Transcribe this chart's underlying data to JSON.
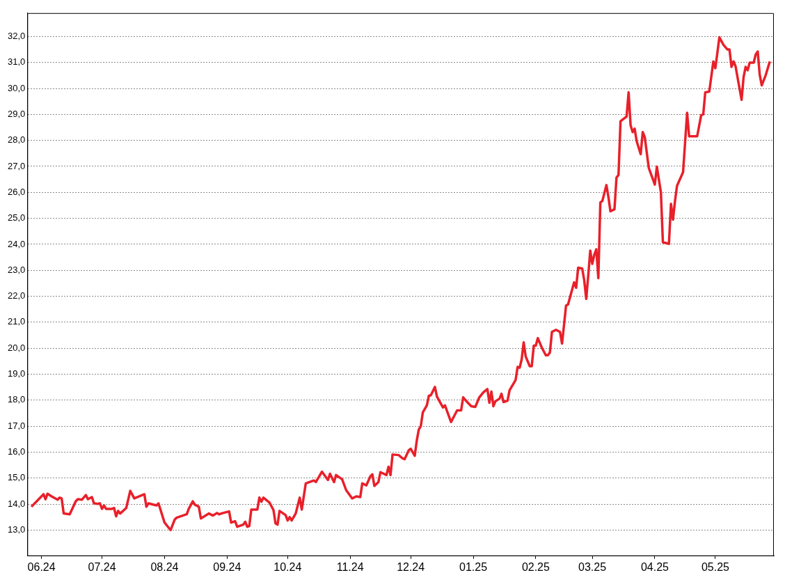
{
  "chart_data": {
    "type": "line",
    "x": [
      "2024-05-27",
      "2024-05-31",
      "2024-06-02",
      "2024-06-03",
      "2024-06-04",
      "2024-06-06",
      "2024-06-09",
      "2024-06-10",
      "2024-06-11",
      "2024-06-12",
      "2024-06-15",
      "2024-06-18",
      "2024-06-19",
      "2024-06-21",
      "2024-06-23",
      "2024-06-24",
      "2024-06-26",
      "2024-06-27",
      "2024-06-29",
      "2024-06-30",
      "2024-07-01",
      "2024-07-02",
      "2024-07-03",
      "2024-07-06",
      "2024-07-07",
      "2024-07-08",
      "2024-07-09",
      "2024-07-10",
      "2024-07-13",
      "2024-07-15",
      "2024-07-17",
      "2024-07-22",
      "2024-07-23",
      "2024-07-24",
      "2024-07-28",
      "2024-07-29",
      "2024-08-01",
      "2024-08-04",
      "2024-08-06",
      "2024-08-07",
      "2024-08-12",
      "2024-08-13",
      "2024-08-15",
      "2024-08-16",
      "2024-08-18",
      "2024-08-19",
      "2024-08-23",
      "2024-08-25",
      "2024-08-27",
      "2024-08-28",
      "2024-08-30",
      "2024-09-02",
      "2024-09-03",
      "2024-09-05",
      "2024-09-06",
      "2024-09-09",
      "2024-09-10",
      "2024-09-11",
      "2024-09-12",
      "2024-09-13",
      "2024-09-16",
      "2024-09-17",
      "2024-09-18",
      "2024-09-19",
      "2024-09-22",
      "2024-09-24",
      "2024-09-25",
      "2024-09-26",
      "2024-09-27",
      "2024-09-30",
      "2024-10-01",
      "2024-10-02",
      "2024-10-03",
      "2024-10-05",
      "2024-10-07",
      "2024-10-08",
      "2024-10-10",
      "2024-10-14",
      "2024-10-15",
      "2024-10-18",
      "2024-10-21",
      "2024-10-22",
      "2024-10-24",
      "2024-10-25",
      "2024-10-28",
      "2024-10-30",
      "2024-11-02",
      "2024-11-04",
      "2024-11-06",
      "2024-11-07",
      "2024-11-09",
      "2024-11-11",
      "2024-11-12",
      "2024-11-13",
      "2024-11-15",
      "2024-11-16",
      "2024-11-19",
      "2024-11-20",
      "2024-11-21",
      "2024-11-22",
      "2024-11-25",
      "2024-11-27",
      "2024-11-28",
      "2024-11-30",
      "2024-12-01",
      "2024-12-03",
      "2024-12-04",
      "2024-12-05",
      "2024-12-06",
      "2024-12-07",
      "2024-12-09",
      "2024-12-10",
      "2024-12-11",
      "2024-12-13",
      "2024-12-14",
      "2024-12-17",
      "2024-12-18",
      "2024-12-21",
      "2024-12-24",
      "2024-12-26",
      "2024-12-27",
      "2024-12-29",
      "2024-12-31",
      "2025-01-02",
      "2025-01-04",
      "2025-01-06",
      "2025-01-08",
      "2025-01-09",
      "2025-01-10",
      "2025-01-11",
      "2025-01-12",
      "2025-01-14",
      "2025-01-15",
      "2025-01-16",
      "2025-01-18",
      "2025-01-19",
      "2025-01-22",
      "2025-01-23",
      "2025-01-24",
      "2025-01-25",
      "2025-01-26",
      "2025-01-27",
      "2025-01-29",
      "2025-01-30",
      "2025-01-31",
      "2025-02-01",
      "2025-02-02",
      "2025-02-04",
      "2025-02-06",
      "2025-02-07",
      "2025-02-08",
      "2025-02-09",
      "2025-02-11",
      "2025-02-13",
      "2025-02-14",
      "2025-02-15",
      "2025-02-16",
      "2025-02-17",
      "2025-02-20",
      "2025-02-21",
      "2025-02-22",
      "2025-02-24",
      "2025-02-25",
      "2025-02-26",
      "2025-02-27",
      "2025-02-28",
      "2025-03-01",
      "2025-03-02",
      "2025-03-03",
      "2025-03-04",
      "2025-03-05",
      "2025-03-06",
      "2025-03-08",
      "2025-03-09",
      "2025-03-10",
      "2025-03-12",
      "2025-03-13",
      "2025-03-14",
      "2025-03-15",
      "2025-03-18",
      "2025-03-19",
      "2025-03-20",
      "2025-03-21",
      "2025-03-22",
      "2025-03-23",
      "2025-03-25",
      "2025-03-26",
      "2025-03-27",
      "2025-03-29",
      "2025-04-01",
      "2025-04-02",
      "2025-04-04",
      "2025-04-05",
      "2025-04-08",
      "2025-04-09",
      "2025-04-10",
      "2025-04-11",
      "2025-04-12",
      "2025-04-15",
      "2025-04-17",
      "2025-04-18",
      "2025-04-20",
      "2025-04-22",
      "2025-04-24",
      "2025-04-25",
      "2025-04-26",
      "2025-04-28",
      "2025-04-30",
      "2025-05-01",
      "2025-05-03",
      "2025-05-05",
      "2025-05-07",
      "2025-05-08",
      "2025-05-09",
      "2025-05-10",
      "2025-05-11",
      "2025-05-14",
      "2025-05-15",
      "2025-05-16",
      "2025-05-17",
      "2025-05-18",
      "2025-05-20",
      "2025-05-21",
      "2025-05-22",
      "2025-05-23",
      "2025-05-24",
      "2025-05-26",
      "2025-05-28"
    ],
    "series": [
      {
        "color": "#e8202a",
        "values": [
          13.9,
          14.22,
          14.38,
          14.19,
          14.4,
          14.3,
          14.17,
          14.25,
          14.22,
          13.64,
          13.61,
          14.11,
          14.19,
          14.17,
          14.35,
          14.19,
          14.27,
          14.03,
          14.01,
          14.03,
          13.82,
          13.95,
          13.82,
          13.82,
          13.85,
          13.53,
          13.74,
          13.64,
          13.85,
          14.51,
          14.22,
          14.38,
          13.9,
          14.03,
          13.95,
          14.03,
          13.29,
          13.0,
          13.4,
          13.48,
          13.61,
          13.82,
          14.11,
          13.98,
          13.9,
          13.45,
          13.64,
          13.56,
          13.66,
          13.61,
          13.66,
          13.72,
          13.29,
          13.34,
          13.13,
          13.21,
          13.32,
          13.13,
          13.16,
          13.79,
          13.79,
          14.25,
          14.09,
          14.25,
          14.06,
          13.77,
          13.26,
          13.21,
          13.74,
          13.58,
          13.37,
          13.5,
          13.37,
          13.64,
          14.25,
          13.79,
          14.8,
          14.91,
          14.85,
          15.25,
          14.93,
          15.17,
          14.85,
          15.12,
          14.96,
          14.54,
          14.22,
          14.3,
          14.27,
          14.8,
          14.72,
          15.07,
          15.15,
          14.7,
          14.85,
          15.23,
          15.12,
          15.44,
          15.12,
          15.91,
          15.89,
          15.76,
          15.73,
          16.07,
          16.13,
          15.86,
          16.44,
          16.87,
          17.0,
          17.53,
          17.8,
          18.17,
          18.19,
          18.51,
          18.14,
          17.72,
          17.8,
          17.16,
          17.61,
          17.61,
          18.11,
          17.93,
          17.77,
          17.74,
          18.11,
          18.3,
          18.43,
          17.9,
          18.33,
          17.77,
          17.96,
          18.06,
          18.25,
          17.93,
          17.98,
          18.38,
          18.78,
          19.28,
          19.25,
          19.57,
          20.23,
          19.68,
          19.31,
          19.31,
          20.1,
          20.1,
          20.39,
          20.02,
          19.73,
          19.73,
          19.84,
          20.63,
          20.71,
          20.63,
          20.18,
          20.9,
          21.64,
          21.69,
          22.54,
          22.33,
          23.1,
          23.07,
          22.62,
          21.9,
          22.8,
          23.76,
          23.25,
          23.6,
          23.81,
          22.7,
          25.61,
          25.67,
          26.28,
          25.82,
          25.27,
          25.35,
          26.57,
          26.67,
          28.74,
          28.92,
          29.85,
          28.58,
          28.32,
          28.45,
          27.97,
          27.47,
          28.32,
          28.13,
          26.94,
          26.3,
          26.99,
          26.01,
          24.08,
          24.02,
          25.56,
          24.95,
          25.67,
          26.25,
          26.78,
          29.06,
          28.16,
          28.16,
          28.16,
          28.98,
          29.0,
          29.85,
          29.88,
          31.04,
          30.78,
          31.97,
          31.68,
          31.5,
          31.5,
          30.83,
          31.04,
          30.86,
          29.56,
          30.44,
          30.83,
          30.7,
          30.99,
          30.99,
          31.31,
          31.42,
          30.52,
          30.12,
          30.52,
          31.04
        ]
      }
    ],
    "xlim": [
      "2024-05-25",
      "2025-05-30"
    ],
    "xticks": [
      {
        "value": "2024-06",
        "label": "06.24"
      },
      {
        "value": "2024-07",
        "label": "07.24"
      },
      {
        "value": "2024-08",
        "label": "08.24"
      },
      {
        "value": "2024-09",
        "label": "09.24"
      },
      {
        "value": "2024-10",
        "label": "10.24"
      },
      {
        "value": "2024-11",
        "label": "11.24"
      },
      {
        "value": "2024-12",
        "label": "12.24"
      },
      {
        "value": "2025-01",
        "label": "01.25"
      },
      {
        "value": "2025-02",
        "label": "02.25"
      },
      {
        "value": "2025-03",
        "label": "03.25"
      },
      {
        "value": "2025-04",
        "label": "04.25"
      },
      {
        "value": "2025-05",
        "label": "05.25"
      }
    ],
    "ylim": [
      12.0,
      32.9
    ],
    "yticks": [
      {
        "value": 13,
        "label": "13,0"
      },
      {
        "value": 14,
        "label": "14,0"
      },
      {
        "value": 15,
        "label": "15,0"
      },
      {
        "value": 16,
        "label": "16,0"
      },
      {
        "value": 17,
        "label": "17,0"
      },
      {
        "value": 18,
        "label": "18,0"
      },
      {
        "value": 19,
        "label": "19,0"
      },
      {
        "value": 20,
        "label": "20,0"
      },
      {
        "value": 21,
        "label": "21,0"
      },
      {
        "value": 22,
        "label": "22,0"
      },
      {
        "value": 23,
        "label": "23,0"
      },
      {
        "value": 24,
        "label": "24,0"
      },
      {
        "value": 25,
        "label": "25,0"
      },
      {
        "value": 26,
        "label": "26,0"
      },
      {
        "value": 27,
        "label": "27,0"
      },
      {
        "value": 28,
        "label": "28,0"
      },
      {
        "value": 29,
        "label": "29,0"
      },
      {
        "value": 30,
        "label": "30,0"
      },
      {
        "value": 31,
        "label": "31,0"
      },
      {
        "value": 32,
        "label": "32,0"
      }
    ],
    "grid": "y",
    "legend": false,
    "marker": "none",
    "line_style": "solid"
  }
}
